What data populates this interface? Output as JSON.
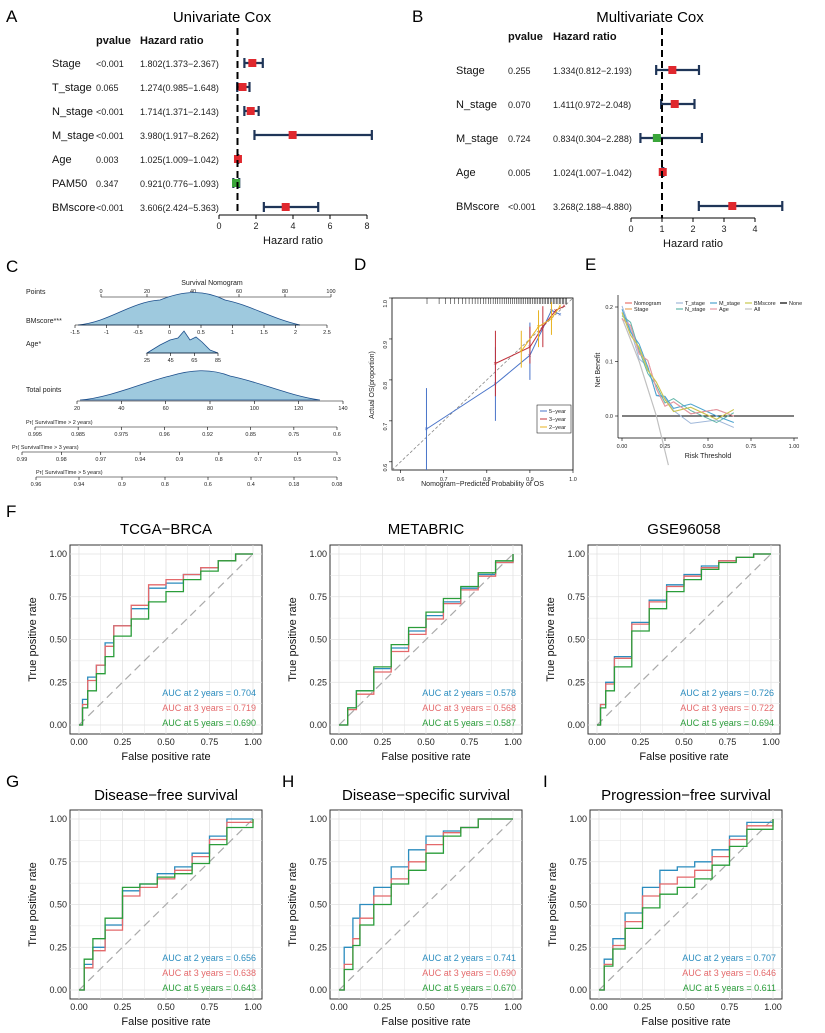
{
  "panels": {
    "A": {
      "letter": "A",
      "title": "Univariate Cox",
      "col_pvalue": "pvalue",
      "col_hr": "Hazard ratio",
      "xlabel": "Hazard ratio",
      "xticks": [
        "0",
        "2",
        "4",
        "6",
        "8"
      ],
      "rows": [
        {
          "var": "Stage",
          "p": "<0.001",
          "hr_text": "1.802(1.373−2.367)",
          "hr": 1.802,
          "lo": 1.373,
          "hi": 2.367,
          "color": "#e0282e"
        },
        {
          "var": "T_stage",
          "p": "0.065",
          "hr_text": "1.274(0.985−1.648)",
          "hr": 1.274,
          "lo": 0.985,
          "hi": 1.648,
          "color": "#e0282e"
        },
        {
          "var": "N_stage",
          "p": "<0.001",
          "hr_text": "1.714(1.371−2.143)",
          "hr": 1.714,
          "lo": 1.371,
          "hi": 2.143,
          "color": "#e0282e"
        },
        {
          "var": "M_stage",
          "p": "<0.001",
          "hr_text": "3.980(1.917−8.262)",
          "hr": 3.98,
          "lo": 1.917,
          "hi": 8.262,
          "color": "#e0282e"
        },
        {
          "var": "Age",
          "p": "0.003",
          "hr_text": "1.025(1.009−1.042)",
          "hr": 1.025,
          "lo": 1.009,
          "hi": 1.042,
          "color": "#e0282e"
        },
        {
          "var": "PAM50",
          "p": "0.347",
          "hr_text": "0.921(0.776−1.093)",
          "hr": 0.921,
          "lo": 0.776,
          "hi": 1.093,
          "color": "#3aa63a"
        },
        {
          "var": "BMscore",
          "p": "<0.001",
          "hr_text": "3.606(2.424−5.363)",
          "hr": 3.606,
          "lo": 2.424,
          "hi": 5.363,
          "color": "#e0282e"
        }
      ]
    },
    "B": {
      "letter": "B",
      "title": "Multivariate Cox",
      "col_pvalue": "pvalue",
      "col_hr": "Hazard ratio",
      "xlabel": "Hazard ratio",
      "xticks": [
        "0",
        "1",
        "2",
        "3",
        "4"
      ],
      "rows": [
        {
          "var": "Stage",
          "p": "0.255",
          "hr_text": "1.334(0.812−2.193)",
          "hr": 1.334,
          "lo": 0.812,
          "hi": 2.193,
          "color": "#e0282e"
        },
        {
          "var": "N_stage",
          "p": "0.070",
          "hr_text": "1.411(0.972−2.048)",
          "hr": 1.411,
          "lo": 0.972,
          "hi": 2.048,
          "color": "#e0282e"
        },
        {
          "var": "M_stage",
          "p": "0.724",
          "hr_text": "0.834(0.304−2.288)",
          "hr": 0.834,
          "lo": 0.304,
          "hi": 2.288,
          "color": "#3aa63a"
        },
        {
          "var": "Age",
          "p": "0.005",
          "hr_text": "1.024(1.007−1.042)",
          "hr": 1.024,
          "lo": 1.007,
          "hi": 1.042,
          "color": "#e0282e"
        },
        {
          "var": "BMscore",
          "p": "<0.001",
          "hr_text": "3.268(2.188−4.880)",
          "hr": 3.268,
          "lo": 2.188,
          "hi": 4.88,
          "color": "#e0282e"
        }
      ]
    },
    "C": {
      "letter": "C",
      "title": "Survival Nomogram",
      "rows": {
        "points": "Points",
        "bmscore": "BMscore***",
        "age": "Age*",
        "total": "Total points",
        "pr2": "Pr( SurvivalTime > 2 years)",
        "pr3": "Pr( SurvivalTime > 3 years)",
        "pr5": "Pr( SurvivalTime > 5 years)"
      },
      "points_ticks": [
        "0",
        "20",
        "40",
        "60",
        "80",
        "100"
      ],
      "bmscore_ticks": [
        "-1.5",
        "-1",
        "-0.5",
        "0",
        "0.5",
        "1",
        "1.5",
        "2",
        "2.5"
      ],
      "age_ticks": [
        "25",
        "45",
        "65",
        "85"
      ],
      "total_ticks": [
        "20",
        "40",
        "60",
        "80",
        "100",
        "120",
        "140"
      ],
      "pr2_ticks": [
        "0.995",
        "0.985",
        "0.975",
        "0.96",
        "0.92",
        "0.85",
        "0.75",
        "0.6"
      ],
      "pr3_ticks": [
        "0.99",
        "0.98",
        "0.97",
        "0.94",
        "0.9",
        "0.8",
        "0.7",
        "0.5",
        "0.3"
      ],
      "pr5_ticks": [
        "0.96",
        "0.94",
        "0.9",
        "0.8",
        "0.6",
        "0.4",
        "0.18",
        "0.08"
      ]
    },
    "D": {
      "letter": "D",
      "xlabel": "Nomogram−Predicted Probability of OS",
      "ylabel": "Actual OS(proportion)",
      "xticks": [
        "0.6",
        "0.7",
        "0.8",
        "0.9",
        "1.0"
      ],
      "yticks": [
        "0.6",
        "0.7",
        "0.8",
        "0.9",
        "1.0"
      ],
      "legend": [
        {
          "name": "5−year",
          "color": "#4a74c9"
        },
        {
          "name": "3−year",
          "color": "#c0303a"
        },
        {
          "name": "2−year",
          "color": "#e8b320"
        }
      ]
    },
    "E": {
      "letter": "E",
      "xlabel": "Risk Threshold",
      "ylabel": "Net Benefit",
      "xticks": [
        "0.00",
        "0.25",
        "0.50",
        "0.75",
        "1.00"
      ],
      "yticks": [
        "0.0",
        "0.1",
        "0.2"
      ],
      "legend": [
        {
          "name": "Nomogram",
          "color": "#e8736a"
        },
        {
          "name": "Stage",
          "color": "#e8a660"
        },
        {
          "name": "T_stage",
          "color": "#9fb7d9"
        },
        {
          "name": "N_stage",
          "color": "#62b6a9"
        },
        {
          "name": "M_stage",
          "color": "#4da3cf"
        },
        {
          "name": "Age",
          "color": "#e39aa5"
        },
        {
          "name": "BMscore",
          "color": "#c9c84e"
        },
        {
          "name": "All",
          "color": "#c0c0c0"
        },
        {
          "name": "None",
          "color": "#000000"
        }
      ]
    },
    "F": {
      "letter": "F"
    },
    "G": {
      "letter": "G"
    },
    "H": {
      "letter": "H"
    },
    "I": {
      "letter": "I"
    }
  },
  "roc_common": {
    "xlabel": "False positive rate",
    "ylabel": "True positive rate",
    "ticks": [
      "0.00",
      "0.25",
      "0.50",
      "0.75",
      "1.00"
    ],
    "colors": [
      "#2b8cbe",
      "#e4696b",
      "#2a9d3a"
    ]
  },
  "chart_data": [
    {
      "type": "line",
      "title": "TCGA−BRCA",
      "xlabel": "False positive rate",
      "ylabel": "True positive rate",
      "series": [
        {
          "name": "AUC at 2 years = 0.704",
          "x": [
            0,
            0.02,
            0.05,
            0.1,
            0.15,
            0.2,
            0.3,
            0.4,
            0.5,
            0.6,
            0.7,
            0.8,
            0.9,
            1
          ],
          "values": [
            0,
            0.15,
            0.28,
            0.35,
            0.48,
            0.58,
            0.68,
            0.8,
            0.83,
            0.88,
            0.92,
            0.96,
            1,
            1
          ]
        },
        {
          "name": "AUC at 3 years = 0.719",
          "x": [
            0,
            0.02,
            0.05,
            0.1,
            0.15,
            0.2,
            0.3,
            0.4,
            0.5,
            0.6,
            0.7,
            0.8,
            0.9,
            1
          ],
          "values": [
            0,
            0.12,
            0.26,
            0.35,
            0.46,
            0.58,
            0.7,
            0.82,
            0.85,
            0.88,
            0.92,
            0.96,
            1,
            1
          ]
        },
        {
          "name": "AUC at 5 years = 0.690",
          "x": [
            0,
            0.02,
            0.05,
            0.1,
            0.15,
            0.2,
            0.3,
            0.4,
            0.5,
            0.6,
            0.7,
            0.8,
            0.9,
            1
          ],
          "values": [
            0,
            0.1,
            0.2,
            0.3,
            0.4,
            0.52,
            0.62,
            0.72,
            0.78,
            0.85,
            0.9,
            0.96,
            1,
            1
          ]
        }
      ]
    },
    {
      "type": "line",
      "title": "METABRIC",
      "xlabel": "False positive rate",
      "ylabel": "True positive rate",
      "series": [
        {
          "name": "AUC at 2 years = 0.578",
          "x": [
            0,
            0.05,
            0.1,
            0.2,
            0.3,
            0.4,
            0.5,
            0.6,
            0.7,
            0.8,
            0.9,
            1
          ],
          "values": [
            0,
            0.1,
            0.2,
            0.33,
            0.45,
            0.55,
            0.64,
            0.72,
            0.8,
            0.88,
            0.95,
            1
          ]
        },
        {
          "name": "AUC at 3 years = 0.568",
          "x": [
            0,
            0.05,
            0.1,
            0.2,
            0.3,
            0.4,
            0.5,
            0.6,
            0.7,
            0.8,
            0.9,
            1
          ],
          "values": [
            0,
            0.09,
            0.18,
            0.31,
            0.43,
            0.53,
            0.62,
            0.71,
            0.79,
            0.87,
            0.95,
            1
          ]
        },
        {
          "name": "AUC at 5 years = 0.587",
          "x": [
            0,
            0.05,
            0.1,
            0.2,
            0.3,
            0.4,
            0.5,
            0.6,
            0.7,
            0.8,
            0.9,
            1
          ],
          "values": [
            0,
            0.1,
            0.2,
            0.34,
            0.47,
            0.57,
            0.66,
            0.74,
            0.81,
            0.89,
            0.96,
            1
          ]
        }
      ]
    },
    {
      "type": "line",
      "title": "GSE96058",
      "xlabel": "False positive rate",
      "ylabel": "True positive rate",
      "series": [
        {
          "name": "AUC at 2 years = 0.726",
          "x": [
            0,
            0.02,
            0.05,
            0.1,
            0.2,
            0.3,
            0.4,
            0.5,
            0.6,
            0.7,
            0.8,
            0.9,
            1
          ],
          "values": [
            0,
            0.12,
            0.25,
            0.4,
            0.6,
            0.73,
            0.82,
            0.88,
            0.93,
            0.96,
            0.98,
            1,
            1
          ]
        },
        {
          "name": "AUC at 3 years = 0.722",
          "x": [
            0,
            0.02,
            0.05,
            0.1,
            0.2,
            0.3,
            0.4,
            0.5,
            0.6,
            0.7,
            0.8,
            0.9,
            1
          ],
          "values": [
            0,
            0.12,
            0.24,
            0.39,
            0.59,
            0.72,
            0.81,
            0.87,
            0.92,
            0.96,
            0.98,
            1,
            1
          ]
        },
        {
          "name": "AUC at 5 years = 0.694",
          "x": [
            0,
            0.02,
            0.05,
            0.1,
            0.2,
            0.3,
            0.4,
            0.5,
            0.6,
            0.7,
            0.8,
            0.9,
            1
          ],
          "values": [
            0,
            0.1,
            0.2,
            0.34,
            0.55,
            0.68,
            0.78,
            0.85,
            0.91,
            0.95,
            0.98,
            1,
            1
          ]
        }
      ]
    },
    {
      "type": "line",
      "title": "Disease−free survival",
      "xlabel": "False positive rate",
      "ylabel": "True positive rate",
      "series": [
        {
          "name": "AUC at 2 years = 0.656",
          "x": [
            0,
            0.03,
            0.08,
            0.15,
            0.25,
            0.35,
            0.45,
            0.55,
            0.65,
            0.75,
            0.85,
            1
          ],
          "values": [
            0,
            0.15,
            0.25,
            0.38,
            0.58,
            0.62,
            0.68,
            0.72,
            0.8,
            0.9,
            1,
            1
          ]
        },
        {
          "name": "AUC at 3 years = 0.638",
          "x": [
            0,
            0.03,
            0.08,
            0.15,
            0.25,
            0.35,
            0.45,
            0.55,
            0.65,
            0.75,
            0.85,
            1
          ],
          "values": [
            0,
            0.13,
            0.23,
            0.35,
            0.55,
            0.6,
            0.65,
            0.7,
            0.78,
            0.88,
            0.98,
            1
          ]
        },
        {
          "name": "AUC at 5 years = 0.643",
          "x": [
            0,
            0.03,
            0.08,
            0.15,
            0.25,
            0.35,
            0.45,
            0.55,
            0.65,
            0.75,
            0.85,
            1
          ],
          "values": [
            0,
            0.18,
            0.3,
            0.42,
            0.6,
            0.62,
            0.66,
            0.68,
            0.74,
            0.85,
            0.95,
            1
          ]
        }
      ]
    },
    {
      "type": "line",
      "title": "Disease−specific survival",
      "xlabel": "False positive rate",
      "ylabel": "True positive rate",
      "series": [
        {
          "name": "AUC at 2 years = 0.741",
          "x": [
            0,
            0.03,
            0.08,
            0.12,
            0.2,
            0.3,
            0.4,
            0.5,
            0.6,
            0.7,
            0.8,
            1
          ],
          "values": [
            0,
            0.25,
            0.42,
            0.5,
            0.6,
            0.72,
            0.82,
            0.9,
            0.93,
            0.95,
            1,
            1
          ]
        },
        {
          "name": "AUC at 3 years = 0.690",
          "x": [
            0,
            0.03,
            0.08,
            0.12,
            0.2,
            0.3,
            0.4,
            0.5,
            0.6,
            0.7,
            0.8,
            1
          ],
          "values": [
            0,
            0.15,
            0.3,
            0.42,
            0.55,
            0.65,
            0.75,
            0.85,
            0.92,
            0.95,
            1,
            1
          ]
        },
        {
          "name": "AUC at 5 years = 0.670",
          "x": [
            0,
            0.03,
            0.08,
            0.12,
            0.2,
            0.3,
            0.4,
            0.5,
            0.6,
            0.7,
            0.8,
            1
          ],
          "values": [
            0,
            0.12,
            0.26,
            0.38,
            0.5,
            0.62,
            0.7,
            0.8,
            0.9,
            0.95,
            1,
            1
          ]
        }
      ]
    },
    {
      "type": "line",
      "title": "Progression−free survival",
      "xlabel": "False positive rate",
      "ylabel": "True positive rate",
      "series": [
        {
          "name": "AUC at 2 years = 0.707",
          "x": [
            0,
            0.03,
            0.08,
            0.15,
            0.25,
            0.35,
            0.45,
            0.55,
            0.65,
            0.75,
            0.85,
            1
          ],
          "values": [
            0,
            0.18,
            0.3,
            0.45,
            0.6,
            0.7,
            0.72,
            0.75,
            0.82,
            0.9,
            0.98,
            1
          ]
        },
        {
          "name": "AUC at 3 years = 0.646",
          "x": [
            0,
            0.03,
            0.08,
            0.15,
            0.25,
            0.35,
            0.45,
            0.55,
            0.65,
            0.75,
            0.85,
            1
          ],
          "values": [
            0,
            0.15,
            0.26,
            0.4,
            0.55,
            0.62,
            0.66,
            0.7,
            0.78,
            0.88,
            0.96,
            1
          ]
        },
        {
          "name": "AUC at 5 years = 0.611",
          "x": [
            0,
            0.03,
            0.08,
            0.15,
            0.25,
            0.35,
            0.45,
            0.55,
            0.65,
            0.75,
            0.85,
            1
          ],
          "values": [
            0,
            0.14,
            0.24,
            0.36,
            0.48,
            0.56,
            0.6,
            0.65,
            0.73,
            0.84,
            0.94,
            1
          ]
        }
      ]
    }
  ]
}
